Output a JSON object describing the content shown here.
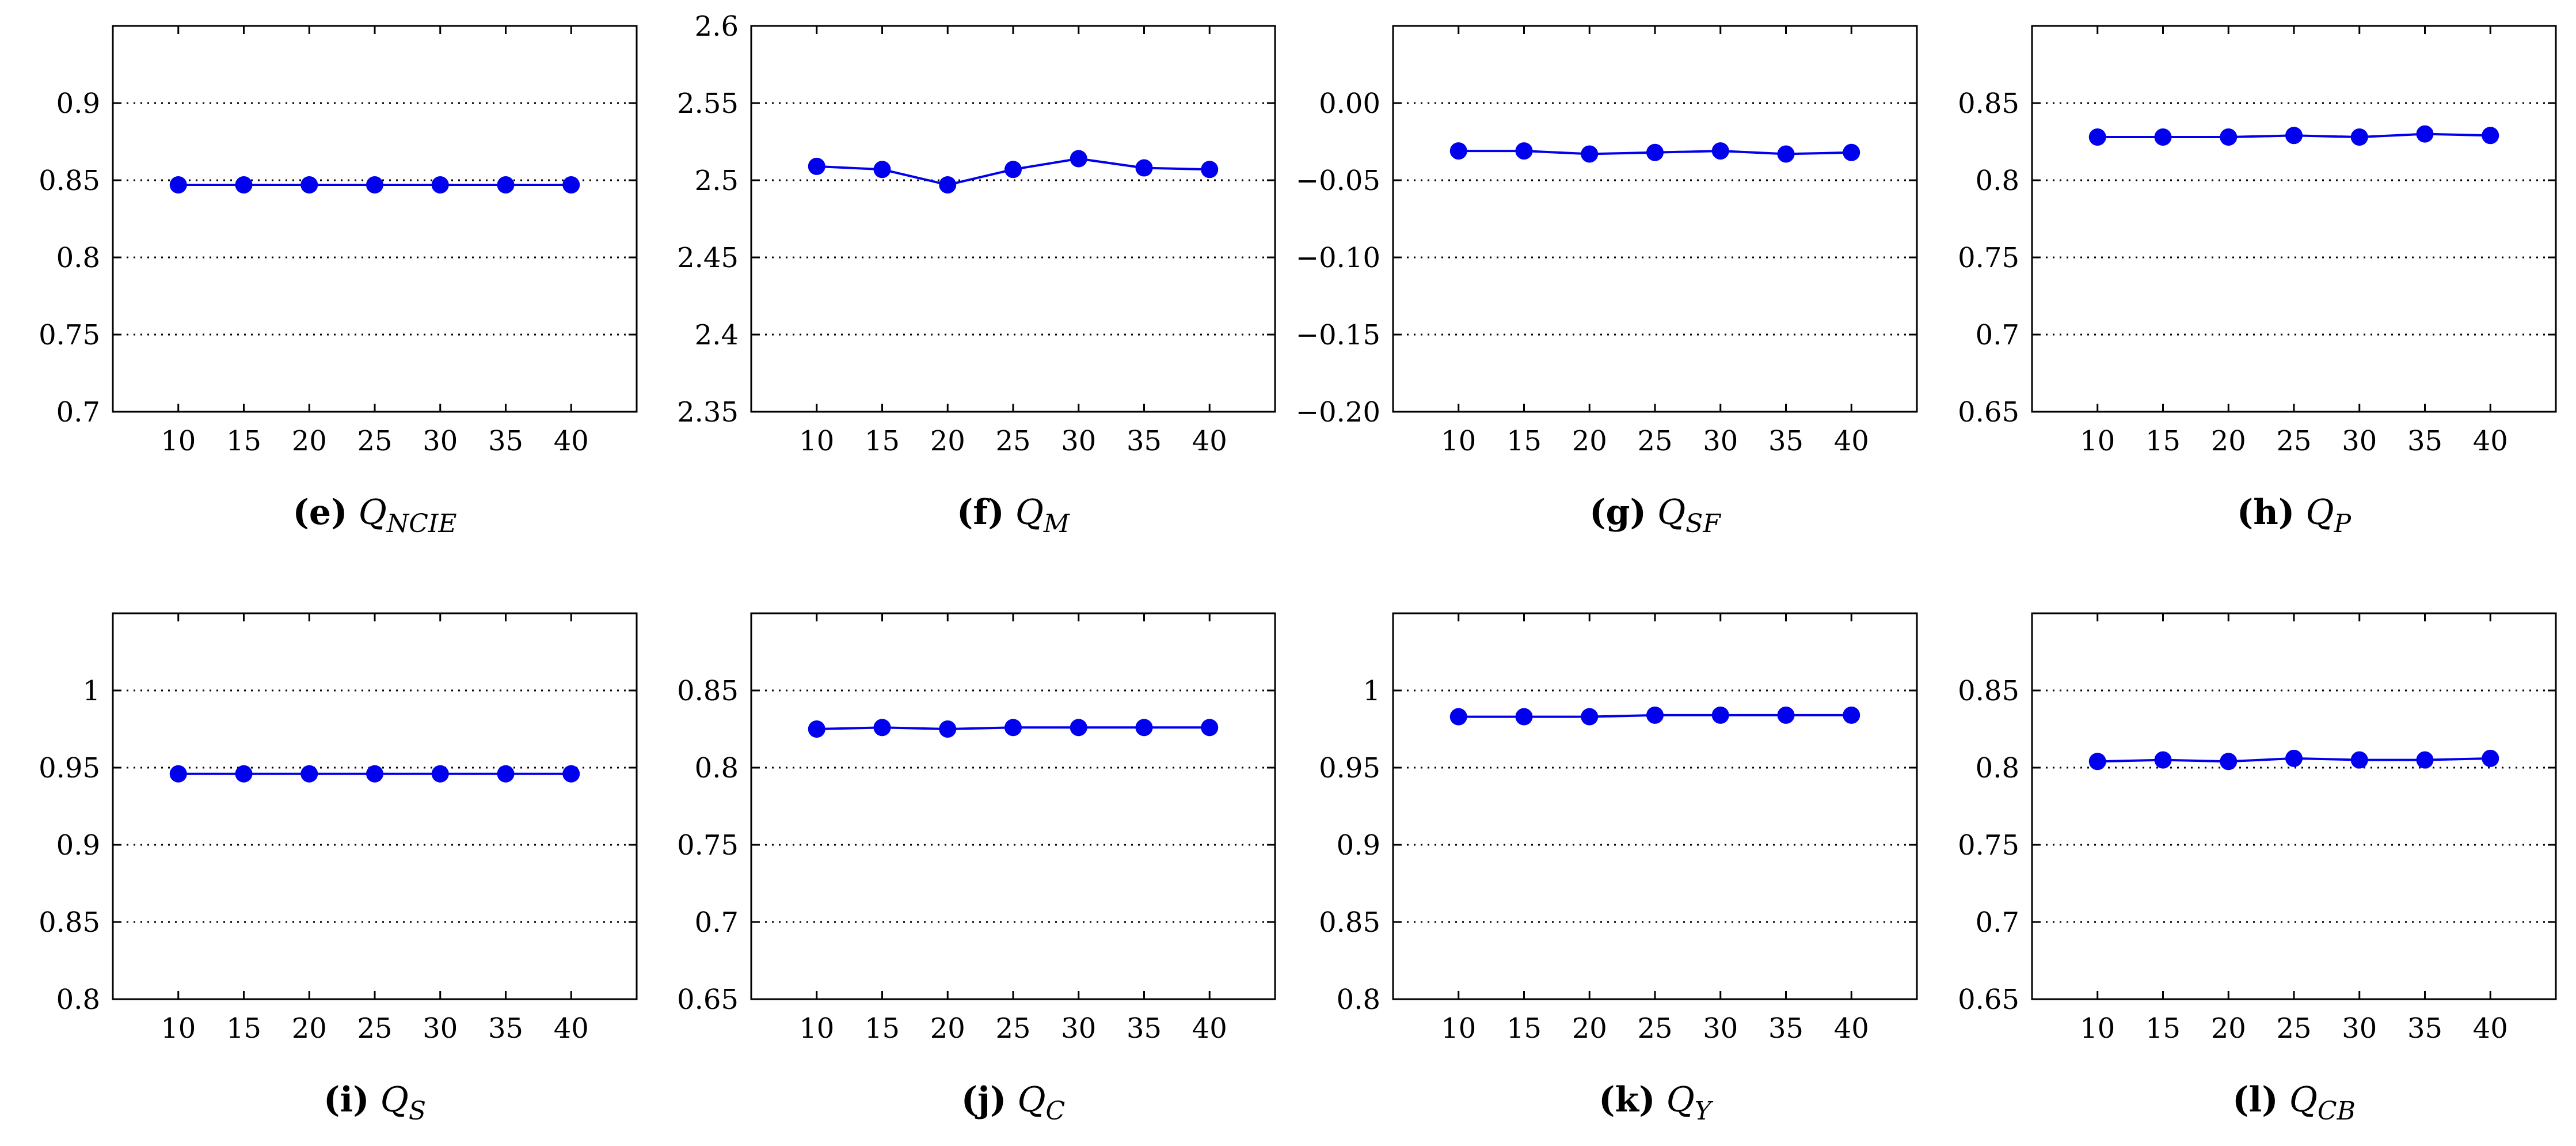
{
  "figure": {
    "series_color": "#0000ee",
    "grid_color": "#000000",
    "axis_color": "#000000"
  },
  "chart_data": [
    {
      "type": "line",
      "id": "e",
      "caption": {
        "letter": "(e)",
        "base": "Q",
        "sub": "NCIE"
      },
      "x": [
        10,
        15,
        20,
        25,
        30,
        35,
        40
      ],
      "xticks": [
        "10",
        "15",
        "20",
        "25",
        "30",
        "35",
        "40"
      ],
      "xlim": [
        5,
        45
      ],
      "ylim": [
        0.7,
        0.95
      ],
      "yticks": [
        0.7,
        0.75,
        0.8,
        0.85,
        0.9
      ],
      "ytick_labels": [
        "0.7",
        "0.75",
        "0.8",
        "0.85",
        "0.9"
      ],
      "grid": "y-dotted",
      "series": [
        {
          "name": "Q_NCIE",
          "values": [
            0.847,
            0.847,
            0.847,
            0.847,
            0.847,
            0.847,
            0.847
          ]
        }
      ]
    },
    {
      "type": "line",
      "id": "f",
      "caption": {
        "letter": "(f)",
        "base": "Q",
        "sub": "M"
      },
      "x": [
        10,
        15,
        20,
        25,
        30,
        35,
        40
      ],
      "xticks": [
        "10",
        "15",
        "20",
        "25",
        "30",
        "35",
        "40"
      ],
      "xlim": [
        5,
        45
      ],
      "ylim": [
        2.35,
        2.6
      ],
      "yticks": [
        2.35,
        2.4,
        2.45,
        2.5,
        2.55,
        2.6
      ],
      "ytick_labels": [
        "2.35",
        "2.4",
        "2.45",
        "2.5",
        "2.55",
        "2.6"
      ],
      "grid": "y-dotted",
      "series": [
        {
          "name": "Q_M",
          "values": [
            2.509,
            2.507,
            2.497,
            2.507,
            2.514,
            2.508,
            2.507
          ]
        }
      ]
    },
    {
      "type": "line",
      "id": "g",
      "caption": {
        "letter": "(g)",
        "base": "Q",
        "sub": "SF"
      },
      "x": [
        10,
        15,
        20,
        25,
        30,
        35,
        40
      ],
      "xticks": [
        "10",
        "15",
        "20",
        "25",
        "30",
        "35",
        "40"
      ],
      "xlim": [
        5,
        45
      ],
      "ylim": [
        -0.2,
        0.05
      ],
      "yticks": [
        -0.2,
        -0.15,
        -0.1,
        -0.05,
        0.0
      ],
      "ytick_labels": [
        "−0.20",
        "−0.15",
        "−0.10",
        "−0.05",
        "0.00"
      ],
      "grid": "y-dotted",
      "series": [
        {
          "name": "Q_SF",
          "values": [
            -0.031,
            -0.031,
            -0.033,
            -0.032,
            -0.031,
            -0.033,
            -0.032
          ]
        }
      ]
    },
    {
      "type": "line",
      "id": "h",
      "caption": {
        "letter": "(h)",
        "base": "Q",
        "sub": "P"
      },
      "x": [
        10,
        15,
        20,
        25,
        30,
        35,
        40
      ],
      "xticks": [
        "10",
        "15",
        "20",
        "25",
        "30",
        "35",
        "40"
      ],
      "xlim": [
        5,
        45
      ],
      "ylim": [
        0.65,
        0.9
      ],
      "yticks": [
        0.65,
        0.7,
        0.75,
        0.8,
        0.85
      ],
      "ytick_labels": [
        "0.65",
        "0.7",
        "0.75",
        "0.8",
        "0.85"
      ],
      "grid": "y-dotted",
      "series": [
        {
          "name": "Q_P",
          "values": [
            0.828,
            0.828,
            0.828,
            0.829,
            0.828,
            0.83,
            0.829
          ]
        }
      ]
    },
    {
      "type": "line",
      "id": "i",
      "caption": {
        "letter": "(i)",
        "base": "Q",
        "sub": "S"
      },
      "x": [
        10,
        15,
        20,
        25,
        30,
        35,
        40
      ],
      "xticks": [
        "10",
        "15",
        "20",
        "25",
        "30",
        "35",
        "40"
      ],
      "xlim": [
        5,
        45
      ],
      "ylim": [
        0.8,
        1.05
      ],
      "yticks": [
        0.8,
        0.85,
        0.9,
        0.95,
        1.0
      ],
      "ytick_labels": [
        "0.8",
        "0.85",
        "0.9",
        "0.95",
        "1"
      ],
      "grid": "y-dotted",
      "series": [
        {
          "name": "Q_S",
          "values": [
            0.946,
            0.946,
            0.946,
            0.946,
            0.946,
            0.946,
            0.946
          ]
        }
      ]
    },
    {
      "type": "line",
      "id": "j",
      "caption": {
        "letter": "(j)",
        "base": "Q",
        "sub": "C"
      },
      "x": [
        10,
        15,
        20,
        25,
        30,
        35,
        40
      ],
      "xticks": [
        "10",
        "15",
        "20",
        "25",
        "30",
        "35",
        "40"
      ],
      "xlim": [
        5,
        45
      ],
      "ylim": [
        0.65,
        0.9
      ],
      "yticks": [
        0.65,
        0.7,
        0.75,
        0.8,
        0.85
      ],
      "ytick_labels": [
        "0.65",
        "0.7",
        "0.75",
        "0.8",
        "0.85"
      ],
      "grid": "y-dotted",
      "series": [
        {
          "name": "Q_C",
          "values": [
            0.825,
            0.826,
            0.825,
            0.826,
            0.826,
            0.826,
            0.826
          ]
        }
      ]
    },
    {
      "type": "line",
      "id": "k",
      "caption": {
        "letter": "(k)",
        "base": "Q",
        "sub": "Y"
      },
      "x": [
        10,
        15,
        20,
        25,
        30,
        35,
        40
      ],
      "xticks": [
        "10",
        "15",
        "20",
        "25",
        "30",
        "35",
        "40"
      ],
      "xlim": [
        5,
        45
      ],
      "ylim": [
        0.8,
        1.05
      ],
      "yticks": [
        0.8,
        0.85,
        0.9,
        0.95,
        1.0
      ],
      "ytick_labels": [
        "0.8",
        "0.85",
        "0.9",
        "0.95",
        "1"
      ],
      "grid": "y-dotted",
      "series": [
        {
          "name": "Q_Y",
          "values": [
            0.983,
            0.983,
            0.983,
            0.984,
            0.984,
            0.984,
            0.984
          ]
        }
      ]
    },
    {
      "type": "line",
      "id": "l",
      "caption": {
        "letter": "(l)",
        "base": "Q",
        "sub": "CB"
      },
      "x": [
        10,
        15,
        20,
        25,
        30,
        35,
        40
      ],
      "xticks": [
        "10",
        "15",
        "20",
        "25",
        "30",
        "35",
        "40"
      ],
      "xlim": [
        5,
        45
      ],
      "ylim": [
        0.65,
        0.9
      ],
      "yticks": [
        0.65,
        0.7,
        0.75,
        0.8,
        0.85
      ],
      "ytick_labels": [
        "0.65",
        "0.7",
        "0.75",
        "0.8",
        "0.85"
      ],
      "grid": "y-dotted",
      "series": [
        {
          "name": "Q_CB",
          "values": [
            0.804,
            0.805,
            0.804,
            0.806,
            0.805,
            0.805,
            0.806
          ]
        }
      ]
    }
  ]
}
